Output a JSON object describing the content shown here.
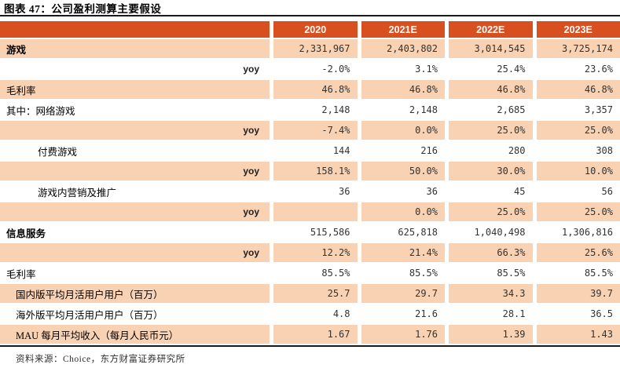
{
  "title": "图表 47：公司盈利测算主要假设",
  "source": {
    "text": "资料来源：Choice，东方财富证券研究所"
  },
  "colors": {
    "header_bg": "#D8501F",
    "row_shade_bg": "#F8D2B3",
    "header_text": "#FFFFFF",
    "rule": "#1A1A1A"
  },
  "table": {
    "columns": [
      "",
      "2020",
      "2021E",
      "2022E",
      "2023E"
    ],
    "rows": [
      {
        "label": "游戏",
        "bold": true,
        "indent": 0,
        "yoy": false,
        "shaded": true,
        "values": [
          "2,331,967",
          "2,403,802",
          "3,014,545",
          "3,725,174"
        ]
      },
      {
        "label": "yoy",
        "bold": false,
        "indent": 0,
        "yoy": true,
        "shaded": false,
        "values": [
          "-2.0%",
          "3.1%",
          "25.4%",
          "23.6%"
        ]
      },
      {
        "label": "毛利率",
        "bold": false,
        "indent": 0,
        "yoy": false,
        "shaded": true,
        "values": [
          "46.8%",
          "46.8%",
          "46.8%",
          "46.8%"
        ]
      },
      {
        "label": "其中：网络游戏",
        "bold": false,
        "indent": 0,
        "yoy": false,
        "shaded": false,
        "values": [
          "2,148",
          "2,148",
          "2,685",
          "3,357"
        ]
      },
      {
        "label": "yoy",
        "bold": false,
        "indent": 0,
        "yoy": true,
        "shaded": true,
        "values": [
          "-7.4%",
          "0.0%",
          "25.0%",
          "25.0%"
        ]
      },
      {
        "label": "付费游戏",
        "bold": false,
        "indent": 2,
        "yoy": false,
        "shaded": false,
        "values": [
          "144",
          "216",
          "280",
          "308"
        ]
      },
      {
        "label": "yoy",
        "bold": false,
        "indent": 0,
        "yoy": true,
        "shaded": true,
        "values": [
          "158.1%",
          "50.0%",
          "30.0%",
          "10.0%"
        ]
      },
      {
        "label": "游戏内营销及推广",
        "bold": false,
        "indent": 2,
        "yoy": false,
        "shaded": false,
        "values": [
          "36",
          "36",
          "45",
          "56"
        ]
      },
      {
        "label": "yoy",
        "bold": false,
        "indent": 0,
        "yoy": true,
        "shaded": true,
        "values": [
          "",
          "0.0%",
          "25.0%",
          "25.0%"
        ]
      },
      {
        "label": "信息服务",
        "bold": true,
        "indent": 0,
        "yoy": false,
        "shaded": false,
        "values": [
          "515,586",
          "625,818",
          "1,040,498",
          "1,306,816"
        ]
      },
      {
        "label": "yoy",
        "bold": false,
        "indent": 0,
        "yoy": true,
        "shaded": true,
        "values": [
          "12.2%",
          "21.4%",
          "66.3%",
          "25.6%"
        ]
      },
      {
        "label": "毛利率",
        "bold": false,
        "indent": 0,
        "yoy": false,
        "shaded": false,
        "values": [
          "85.5%",
          "85.5%",
          "85.5%",
          "85.5%"
        ]
      },
      {
        "label": "国内版平均月活用户用户（百万）",
        "bold": false,
        "indent": 1,
        "yoy": false,
        "shaded": true,
        "values": [
          "25.7",
          "29.7",
          "34.3",
          "39.7"
        ]
      },
      {
        "label": "海外版平均月活用户用户（百万）",
        "bold": false,
        "indent": 1,
        "yoy": false,
        "shaded": false,
        "values": [
          "4.8",
          "21.6",
          "28.1",
          "36.5"
        ]
      },
      {
        "label": "MAU 每月平均收入（每月人民币元）",
        "bold": false,
        "indent": 1,
        "yoy": false,
        "shaded": true,
        "values": [
          "1.67",
          "1.76",
          "1.39",
          "1.43"
        ]
      }
    ]
  }
}
